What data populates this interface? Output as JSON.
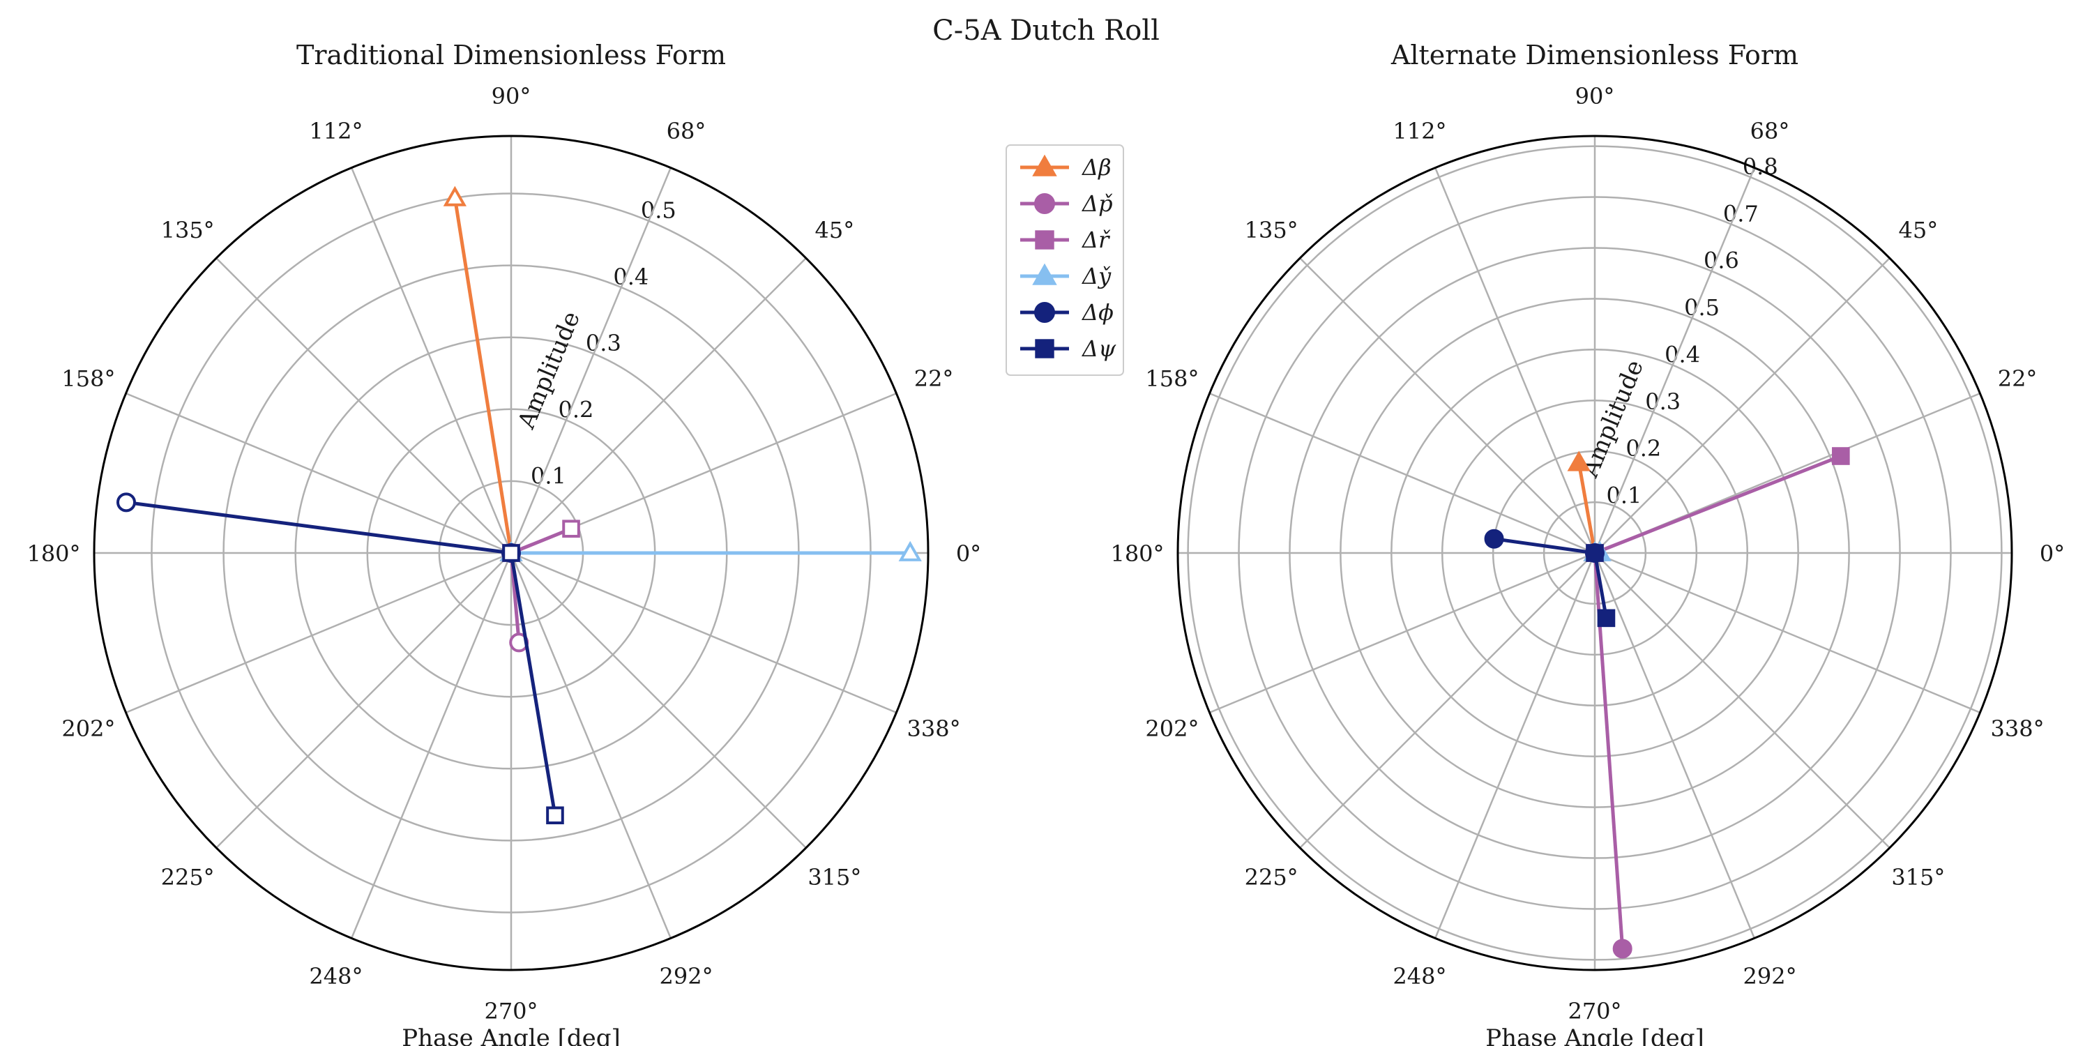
{
  "figure": {
    "title": "C-5A Dutch Roll"
  },
  "colors": {
    "beta": "#f07d3e",
    "p": "#a95ea6",
    "r": "#a95ea6",
    "y": "#86bff0",
    "phi": "#14227c",
    "psi": "#14227c",
    "grid": "#b0b0b0",
    "frame": "#000000"
  },
  "chart_data": [
    {
      "type": "polar",
      "title": "Traditional Dimensionless Form",
      "radial_label": "Amplitude",
      "angular_label": "Phase Angle [deg]",
      "rlim": [
        0,
        0.58
      ],
      "rticks": [
        "0.1",
        "0.2",
        "0.3",
        "0.4",
        "0.5"
      ],
      "angle_ticks": [
        "0°",
        "22°",
        "45°",
        "68°",
        "90°",
        "112°",
        "135°",
        "158°",
        "180°",
        "202°",
        "225°",
        "248°",
        "270°",
        "292°",
        "315°",
        "338°"
      ],
      "marker_fill": "none",
      "series": [
        {
          "name": "Δβ",
          "marker": "triangle",
          "color_key": "beta",
          "amplitude": 0.5,
          "phase": 99
        },
        {
          "name": "Δp̌",
          "marker": "circle",
          "color_key": "p",
          "amplitude": 0.125,
          "phase": 275
        },
        {
          "name": "Δř",
          "marker": "square",
          "color_key": "r",
          "amplitude": 0.09,
          "phase": 22
        },
        {
          "name": "Δy̌",
          "marker": "triangle",
          "color_key": "y",
          "amplitude": 0.555,
          "phase": 0
        },
        {
          "name": "Δϕ",
          "marker": "circle",
          "color_key": "phi",
          "amplitude": 0.54,
          "phase": 172.5
        },
        {
          "name": "Δψ",
          "marker": "square",
          "color_key": "psi",
          "amplitude": 0.37,
          "phase": 279.5
        }
      ]
    },
    {
      "type": "polar",
      "title": "Alternate Dimensionless Form",
      "radial_label": "Amplitude",
      "angular_label": "Phase Angle [deg]",
      "rlim": [
        0,
        0.82
      ],
      "rticks": [
        "0.1",
        "0.2",
        "0.3",
        "0.4",
        "0.5",
        "0.6",
        "0.7",
        "0.8"
      ],
      "angle_ticks": [
        "0°",
        "22°",
        "45°",
        "68°",
        "90°",
        "112°",
        "135°",
        "158°",
        "180°",
        "202°",
        "225°",
        "248°",
        "270°",
        "292°",
        "315°",
        "338°"
      ],
      "marker_fill": "solid",
      "series": [
        {
          "name": "Δβ",
          "marker": "triangle",
          "color_key": "beta",
          "amplitude": 0.18,
          "phase": 100
        },
        {
          "name": "Δp̌",
          "marker": "circle",
          "color_key": "p",
          "amplitude": 0.78,
          "phase": 274
        },
        {
          "name": "Δř",
          "marker": "square",
          "color_key": "r",
          "amplitude": 0.52,
          "phase": 21.5
        },
        {
          "name": "Δy̌",
          "marker": "triangle",
          "color_key": "y",
          "amplitude": 0.01,
          "phase": 0
        },
        {
          "name": "Δϕ",
          "marker": "circle",
          "color_key": "phi",
          "amplitude": 0.2,
          "phase": 172
        },
        {
          "name": "Δψ",
          "marker": "square",
          "color_key": "psi",
          "amplitude": 0.13,
          "phase": 280
        }
      ]
    }
  ],
  "legend": {
    "placement": "between-plots",
    "items": [
      {
        "label": "Δβ",
        "marker": "triangle",
        "color_key": "beta"
      },
      {
        "label": "Δp̌",
        "marker": "circle",
        "color_key": "p"
      },
      {
        "label": "Δř",
        "marker": "square",
        "color_key": "r"
      },
      {
        "label": "Δy̌",
        "marker": "triangle",
        "color_key": "y"
      },
      {
        "label": "Δϕ",
        "marker": "circle",
        "color_key": "phi"
      },
      {
        "label": "Δψ",
        "marker": "square",
        "color_key": "psi"
      }
    ]
  }
}
